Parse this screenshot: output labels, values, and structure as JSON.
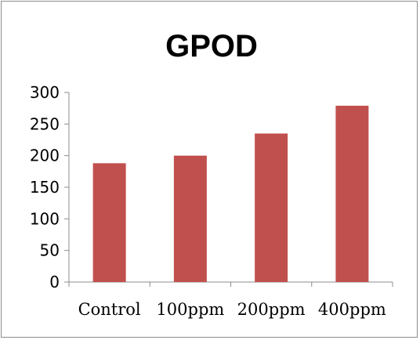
{
  "chart_data": {
    "type": "bar",
    "title": "GPOD",
    "xlabel": "",
    "ylabel": "",
    "categories": [
      "Control",
      "100ppm",
      "200ppm",
      "400ppm"
    ],
    "values": [
      188,
      200,
      235,
      279
    ],
    "ylim": [
      0,
      300
    ],
    "yticks": [
      0,
      50,
      100,
      150,
      200,
      250,
      300
    ],
    "grid": false,
    "legend": "none",
    "bar_color": "#C0504D"
  }
}
